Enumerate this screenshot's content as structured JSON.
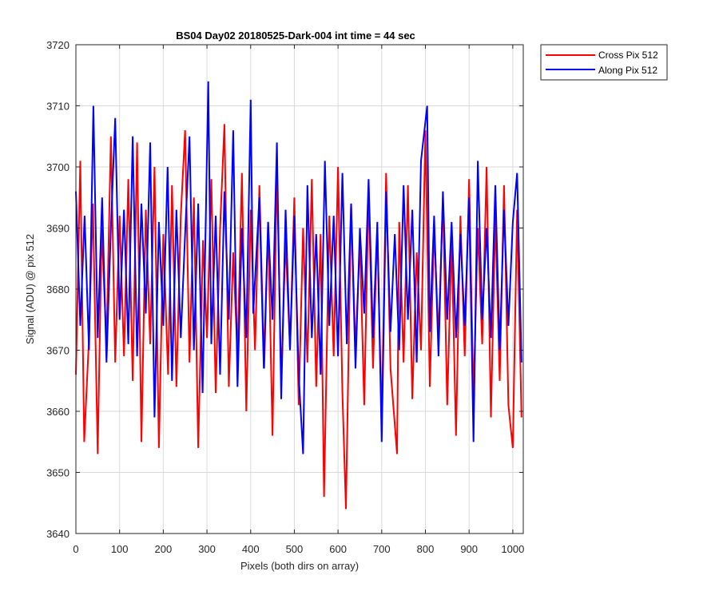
{
  "chart_data": {
    "type": "line",
    "title": "BS04 Day02 20180525-Dark-004 int time = 44 sec",
    "xlabel": "Pixels (both dirs on array)",
    "ylabel": "Signal (ADU) @ pix 512",
    "xlim": [
      0,
      1024
    ],
    "ylim": [
      3640,
      3720
    ],
    "xticks": [
      0,
      100,
      200,
      300,
      400,
      500,
      600,
      700,
      800,
      900,
      1000
    ],
    "yticks": [
      3640,
      3650,
      3660,
      3670,
      3680,
      3690,
      3700,
      3710,
      3720
    ],
    "grid": true,
    "legend_position": "outside-top-right",
    "series": [
      {
        "name": "Cross Pix 512",
        "color": "#ff0000",
        "x": [
          0,
          10,
          19,
          30,
          39,
          50,
          59,
          70,
          80,
          90,
          100,
          110,
          120,
          130,
          140,
          150,
          160,
          170,
          180,
          190,
          200,
          211,
          220,
          230,
          240,
          250,
          260,
          270,
          280,
          291,
          300,
          310,
          320,
          330,
          340,
          350,
          360,
          370,
          380,
          390,
          400,
          410,
          420,
          431,
          440,
          450,
          460,
          470,
          480,
          490,
          500,
          510,
          520,
          530,
          540,
          550,
          560,
          568,
          580,
          590,
          600,
          610,
          618,
          630,
          640,
          650,
          660,
          670,
          680,
          690,
          700,
          710,
          720,
          735,
          740,
          750,
          760,
          770,
          780,
          790,
          800,
          810,
          820,
          830,
          840,
          850,
          860,
          870,
          880,
          890,
          900,
          910,
          920,
          930,
          940,
          950,
          960,
          970,
          980,
          990,
          1000,
          1010,
          1020
        ],
        "y": [
          3666,
          3701,
          3655,
          3672,
          3694,
          3653,
          3690,
          3671,
          3705,
          3668,
          3692,
          3669,
          3698,
          3665,
          3704,
          3655,
          3693,
          3671,
          3700,
          3654,
          3689,
          3666,
          3697,
          3664,
          3692,
          3706,
          3668,
          3695,
          3654,
          3688,
          3672,
          3698,
          3663,
          3690,
          3707,
          3664,
          3686,
          3669,
          3699,
          3660,
          3693,
          3670,
          3697,
          3667,
          3691,
          3656,
          3700,
          3665,
          3688,
          3670,
          3695,
          3661,
          3690,
          3668,
          3698,
          3664,
          3689,
          3646,
          3692,
          3669,
          3700,
          3663,
          3644,
          3694,
          3670,
          3688,
          3661,
          3696,
          3667,
          3690,
          3658,
          3699,
          3667,
          3653,
          3691,
          3668,
          3697,
          3662,
          3686,
          3670,
          3706,
          3664,
          3690,
          3672,
          3695,
          3661,
          3688,
          3656,
          3692,
          3669,
          3698,
          3662,
          3690,
          3671,
          3700,
          3659,
          3692,
          3665,
          3697,
          3661,
          3654,
          3693,
          3659
        ]
      },
      {
        "name": "Along Pix 512",
        "color": "#0000ff",
        "x": [
          0,
          10,
          20,
          30,
          40,
          50,
          60,
          70,
          80,
          90,
          100,
          110,
          120,
          130,
          140,
          150,
          160,
          170,
          180,
          190,
          200,
          210,
          220,
          230,
          240,
          250,
          260,
          270,
          280,
          290,
          303,
          310,
          320,
          330,
          340,
          350,
          360,
          370,
          380,
          390,
          400,
          406,
          420,
          430,
          440,
          450,
          460,
          470,
          480,
          490,
          500,
          510,
          520,
          530,
          540,
          550,
          560,
          570,
          580,
          590,
          600,
          610,
          620,
          630,
          640,
          650,
          660,
          670,
          680,
          690,
          700,
          710,
          720,
          730,
          740,
          750,
          760,
          770,
          780,
          790,
          804,
          810,
          820,
          830,
          840,
          850,
          860,
          870,
          880,
          890,
          900,
          910,
          920,
          930,
          940,
          950,
          960,
          970,
          980,
          990,
          1000,
          1010,
          1020
        ],
        "y": [
          3696,
          3674,
          3692,
          3670,
          3710,
          3672,
          3695,
          3668,
          3690,
          3708,
          3675,
          3693,
          3671,
          3705,
          3669,
          3694,
          3676,
          3704,
          3659,
          3691,
          3674,
          3700,
          3665,
          3693,
          3672,
          3689,
          3705,
          3670,
          3694,
          3663,
          3714,
          3671,
          3692,
          3666,
          3696,
          3675,
          3706,
          3664,
          3690,
          3672,
          3711,
          3676,
          3695,
          3667,
          3691,
          3675,
          3704,
          3662,
          3693,
          3670,
          3692,
          3666,
          3653,
          3697,
          3672,
          3689,
          3666,
          3701,
          3674,
          3692,
          3669,
          3699,
          3671,
          3694,
          3667,
          3690,
          3676,
          3698,
          3672,
          3691,
          3655,
          3696,
          3673,
          3689,
          3670,
          3697,
          3675,
          3693,
          3668,
          3701,
          3710,
          3673,
          3692,
          3669,
          3696,
          3675,
          3691,
          3672,
          3689,
          3674,
          3695,
          3655,
          3701,
          3675,
          3690,
          3672,
          3697,
          3670,
          3693,
          3674,
          3691,
          3699,
          3668
        ]
      }
    ]
  }
}
